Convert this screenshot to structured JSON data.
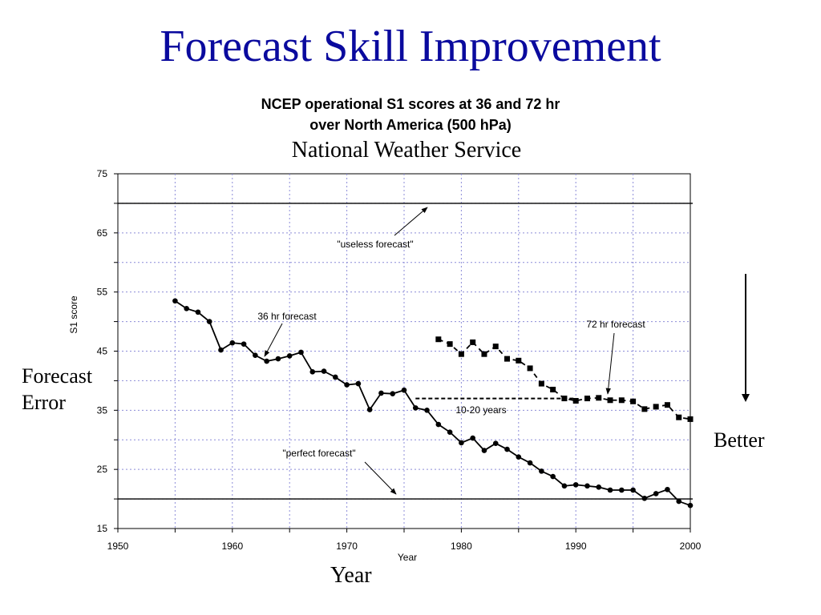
{
  "slide": {
    "title": "Forecast Skill Improvement",
    "subtitle": "National Weather Service",
    "left_label_line1": "Forecast",
    "left_label_line2": "Error",
    "right_label": "Better",
    "bottom_label": "Year"
  },
  "colors": {
    "title": "#0a0a9e",
    "grid": "#8c8cd8",
    "series": "#000000"
  },
  "icons": [
    "down-arrow-icon"
  ],
  "chart_data": {
    "type": "line",
    "title_line1": "NCEP operational S1 scores at 36 and 72 hr",
    "title_line2": "over North America (500 hPa)",
    "xlabel": "Year",
    "ylabel": "S1 score",
    "xlim": [
      1950,
      2000
    ],
    "ylim": [
      15,
      75
    ],
    "xticks": [
      1950,
      1960,
      1970,
      1980,
      1990,
      2000
    ],
    "yticks": [
      15,
      25,
      35,
      45,
      55,
      65,
      75
    ],
    "grid": true,
    "series": [
      {
        "name": "36 hr forecast",
        "marker": "circle",
        "style": "solid",
        "x": [
          1955,
          1956,
          1957,
          1958,
          1959,
          1960,
          1961,
          1962,
          1963,
          1964,
          1965,
          1966,
          1967,
          1968,
          1969,
          1970,
          1971,
          1972,
          1973,
          1974,
          1975,
          1976,
          1977,
          1978,
          1979,
          1980,
          1981,
          1982,
          1983,
          1984,
          1985,
          1986,
          1987,
          1988,
          1989,
          1990,
          1991,
          1992,
          1993,
          1994,
          1995,
          1996,
          1997,
          1998,
          1999,
          2000
        ],
        "y": [
          53.5,
          52.2,
          51.6,
          50.0,
          45.2,
          46.4,
          46.2,
          44.3,
          43.3,
          43.7,
          44.2,
          44.8,
          41.5,
          41.6,
          40.6,
          39.3,
          39.5,
          35.1,
          37.9,
          37.8,
          38.4,
          35.4,
          35.0,
          32.6,
          31.3,
          29.5,
          30.3,
          28.2,
          29.4,
          28.4,
          27.1,
          26.1,
          24.7,
          23.8,
          22.2,
          22.4,
          22.2,
          22.0,
          21.5,
          21.5,
          21.5,
          20.1,
          20.9,
          21.6,
          19.6,
          18.9
        ]
      },
      {
        "name": "72 hr forecast",
        "marker": "square",
        "style": "dashed",
        "x": [
          1978,
          1979,
          1980,
          1981,
          1982,
          1983,
          1984,
          1985,
          1986,
          1987,
          1988,
          1989,
          1990,
          1991,
          1992,
          1993,
          1994,
          1995,
          1996,
          1997,
          1998,
          1999,
          2000
        ],
        "y": [
          47.0,
          46.2,
          44.5,
          46.5,
          44.5,
          45.8,
          43.7,
          43.4,
          42.1,
          39.5,
          38.5,
          37.0,
          36.6,
          37.0,
          37.1,
          36.7,
          36.7,
          36.5,
          35.2,
          35.6,
          35.9,
          33.8,
          33.5
        ]
      }
    ],
    "reference_lines": [
      {
        "label": "\"useless forecast\"",
        "y": 70
      },
      {
        "label": "\"perfect forecast\"",
        "y": 20
      }
    ],
    "gap": {
      "label": "10-20 years",
      "x_start": 1976,
      "x_end": 1990,
      "y": 37
    },
    "annotations": {
      "series_36": "36 hr forecast",
      "series_72": "72 hr forecast",
      "useless": "\"useless forecast\"",
      "perfect": "\"perfect forecast\"",
      "gap": "10-20 years"
    }
  }
}
